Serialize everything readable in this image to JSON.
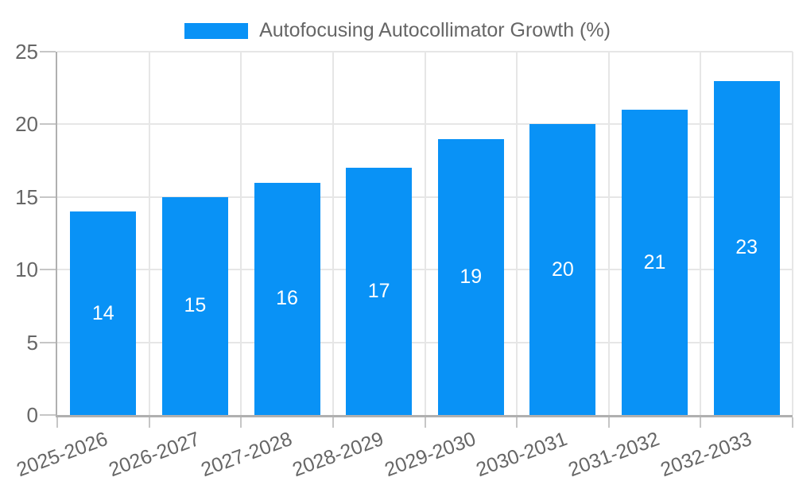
{
  "chart_data": {
    "type": "bar",
    "title": "",
    "legend": "Autofocusing Autocollimator Growth (%)",
    "legend_position": "top",
    "categories": [
      "2025-2026",
      "2026-2027",
      "2027-2028",
      "2028-2029",
      "2029-2030",
      "2030-2031",
      "2031-2032",
      "2032-2033"
    ],
    "values": [
      14,
      15,
      16,
      17,
      19,
      20,
      21,
      23
    ],
    "xlabel": "",
    "ylabel": "",
    "ylim": [
      0,
      25
    ],
    "yticks": [
      0,
      5,
      10,
      15,
      20,
      25
    ],
    "grid": true,
    "colors": {
      "bar": "#0992f6",
      "axis_line": "#b0b0b0",
      "grid_line": "#e6e6e6",
      "tick_line": "#c6c6c6",
      "axis_text": "#666666",
      "value_label": "#ffffff",
      "background": "#ffffff"
    }
  }
}
